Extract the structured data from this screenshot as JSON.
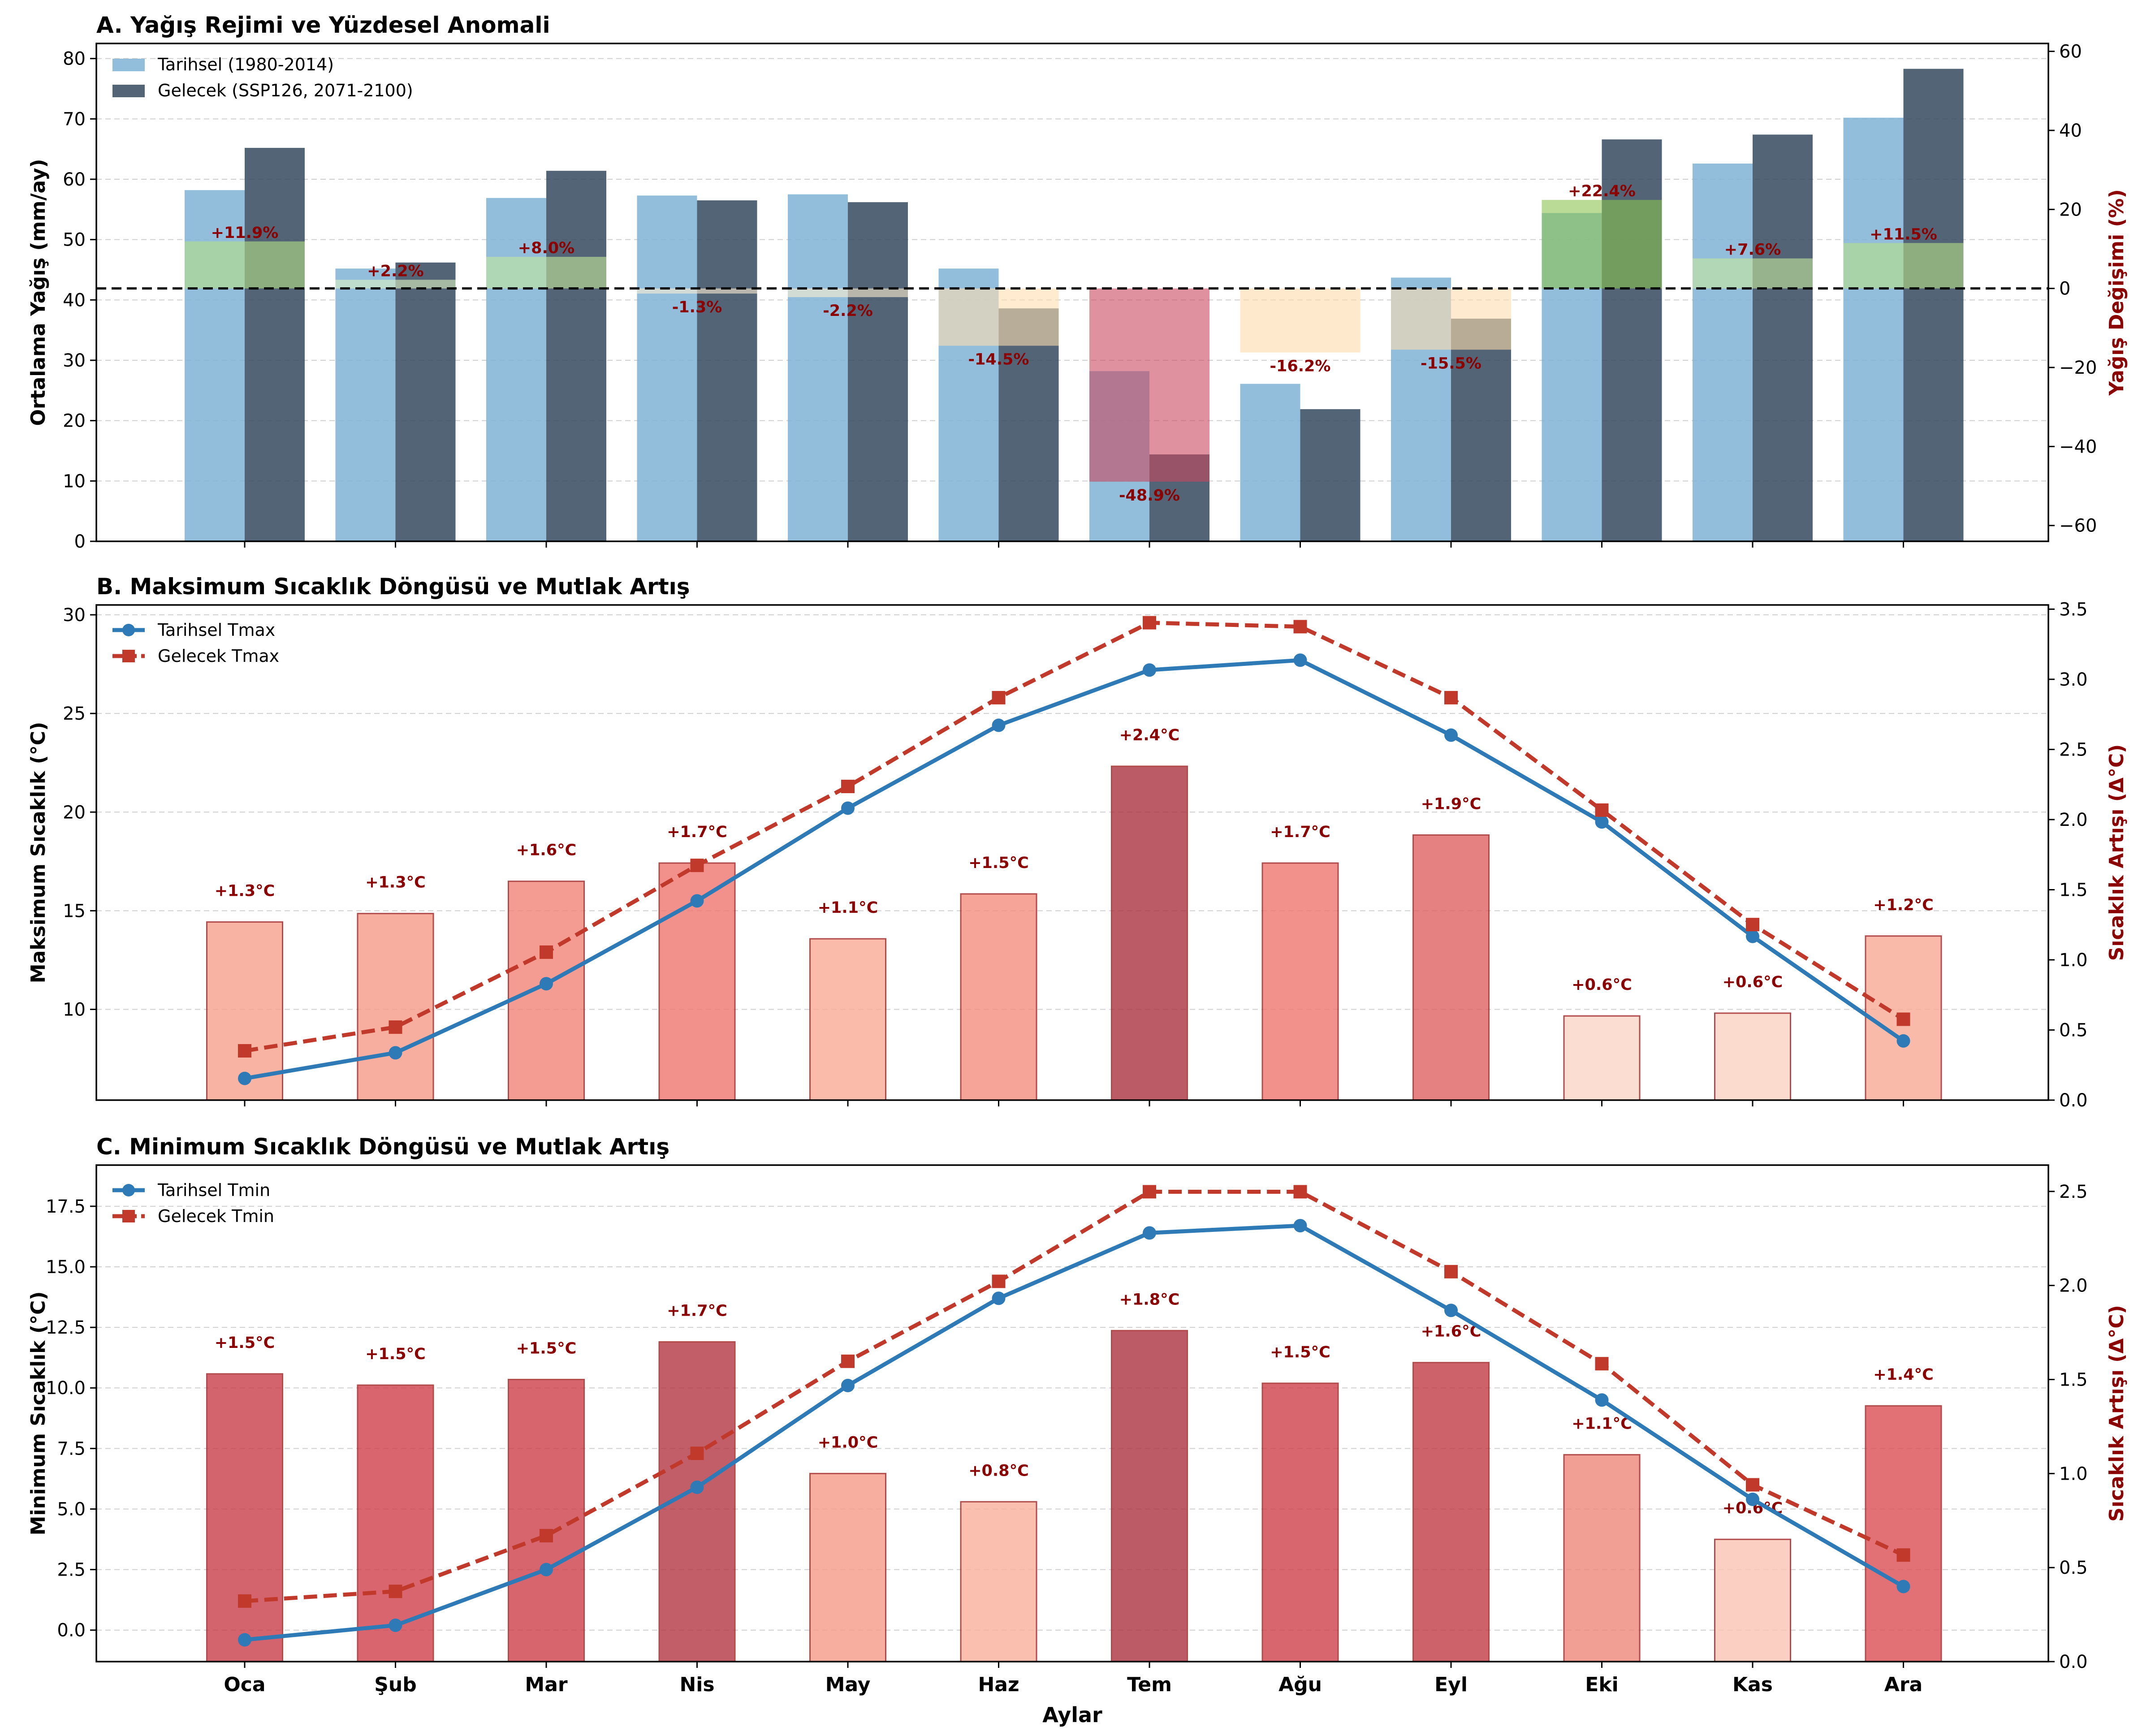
{
  "chart_data": [
    {
      "type": "bar",
      "title": "A. Yağış Rejimi ve Yüzdesel Anomali",
      "categories": [
        "Oca",
        "Şub",
        "Mar",
        "Nis",
        "May",
        "Haz",
        "Tem",
        "Ağu",
        "Eyl",
        "Eki",
        "Kas",
        "Ara"
      ],
      "ylabel": "Ortalama Yağış (mm/ay)",
      "ylabel_right": "Yağış Değişimi (%)",
      "ylim": [
        0,
        82.5
      ],
      "ylim_right": [
        -64,
        62
      ],
      "yticks": [
        0,
        10,
        20,
        30,
        40,
        50,
        60,
        70,
        80
      ],
      "yticks_right": [
        -60,
        -40,
        -20,
        0,
        20,
        40,
        60
      ],
      "series": [
        {
          "name": "Tarihsel (1980-2014)",
          "axis": "left",
          "color": "#7fb3d5",
          "values": [
            58.2,
            45.2,
            56.9,
            57.3,
            57.5,
            45.2,
            28.2,
            26.1,
            43.7,
            54.4,
            62.6,
            70.2
          ]
        },
        {
          "name": "Gelecek (SSP126, 2071-2100)",
          "axis": "left",
          "color": "#34495e",
          "values": [
            65.2,
            46.2,
            61.4,
            56.5,
            56.2,
            38.6,
            14.4,
            21.9,
            36.9,
            66.6,
            67.4,
            78.3
          ]
        },
        {
          "name": "",
          "axis": "right",
          "values": [
            11.9,
            2.2,
            8.0,
            -1.3,
            -2.2,
            -14.5,
            -48.9,
            -16.2,
            -15.5,
            22.4,
            7.6,
            11.5
          ]
        }
      ],
      "data_labels": [
        "+11.9%",
        "+2.2%",
        "+8.0%",
        "-1.3%",
        "-2.2%",
        "-14.5%",
        "-48.9%",
        "-16.2%",
        "-15.5%",
        "+22.4%",
        "+7.6%",
        "+11.5%"
      ],
      "reference_line": {
        "axis": "right",
        "value": 0,
        "style": "dashed",
        "color": "#000000"
      },
      "legend": "upper-left",
      "grid": "y-dashed",
      "colors": {
        "anomaly_positive_high": "#a6d96a",
        "anomaly_negative_low": "#fee0b6",
        "anomaly_negative_high": "#c7425d"
      }
    },
    {
      "type": "bar",
      "title": "B. Maksimum Sıcaklık Döngüsü ve Mutlak Artış",
      "categories": [
        "Oca",
        "Şub",
        "Mar",
        "Nis",
        "May",
        "Haz",
        "Tem",
        "Ağu",
        "Eyl",
        "Eki",
        "Kas",
        "Ara"
      ],
      "ylabel": "Maksimum Sıcaklık (°C)",
      "ylabel_right": "Sıcaklık Artışı (Δ°C)",
      "ylim": [
        5.4,
        30.5
      ],
      "ylim_right": [
        0,
        3.53
      ],
      "yticks": [
        10,
        15,
        20,
        25,
        30
      ],
      "yticks_right": [
        0.0,
        0.5,
        1.0,
        1.5,
        2.0,
        2.5,
        3.0,
        3.5
      ],
      "series": [
        {
          "name": "",
          "axis": "right",
          "type": "bar",
          "values": [
            1.27,
            1.33,
            1.56,
            1.69,
            1.15,
            1.47,
            2.38,
            1.69,
            1.89,
            0.6,
            0.62,
            1.17
          ]
        },
        {
          "name": "Tarihsel Tmax",
          "axis": "left",
          "type": "line",
          "color": "#2e7ab6",
          "marker": "circle",
          "values": [
            6.5,
            7.8,
            11.3,
            15.5,
            20.2,
            24.4,
            27.2,
            27.7,
            23.9,
            19.5,
            13.7,
            8.4
          ]
        },
        {
          "name": "Gelecek Tmax",
          "axis": "left",
          "type": "line",
          "color": "#c0392b",
          "marker": "square",
          "style": "dashed",
          "values": [
            7.9,
            9.1,
            12.9,
            17.3,
            21.3,
            25.8,
            29.6,
            29.4,
            25.8,
            20.1,
            14.3,
            9.5
          ]
        }
      ],
      "data_labels": [
        "+1.3°C",
        "+1.3°C",
        "+1.6°C",
        "+1.7°C",
        "+1.1°C",
        "+1.5°C",
        "+2.4°C",
        "+1.7°C",
        "+1.9°C",
        "+0.6°C",
        "+0.6°C",
        "+1.2°C"
      ],
      "legend": "upper-left",
      "grid": "y-dashed"
    },
    {
      "type": "bar",
      "title": "C. Minimum Sıcaklık Döngüsü ve Mutlak Artış",
      "categories": [
        "Oca",
        "Şub",
        "Mar",
        "Nis",
        "May",
        "Haz",
        "Tem",
        "Ağu",
        "Eyl",
        "Eki",
        "Kas",
        "Ara"
      ],
      "xlabel": "Aylar",
      "ylabel": "Minimum Sıcaklık (°C)",
      "ylabel_right": "Sıcaklık Artışı (Δ°C)",
      "ylim": [
        -1.3,
        19.2
      ],
      "ylim_right": [
        0,
        2.64
      ],
      "yticks": [
        0.0,
        2.5,
        5.0,
        7.5,
        10.0,
        12.5,
        15.0,
        17.5
      ],
      "yticks_right": [
        0.0,
        0.5,
        1.0,
        1.5,
        2.0,
        2.5
      ],
      "series": [
        {
          "name": "",
          "axis": "right",
          "type": "bar",
          "values": [
            1.53,
            1.47,
            1.5,
            1.7,
            1.0,
            0.85,
            1.76,
            1.48,
            1.59,
            1.1,
            0.65,
            1.36
          ]
        },
        {
          "name": "Tarihsel Tmin",
          "axis": "left",
          "type": "line",
          "color": "#2e7ab6",
          "marker": "circle",
          "values": [
            -0.4,
            0.2,
            2.5,
            5.9,
            10.1,
            13.7,
            16.4,
            16.7,
            13.2,
            9.5,
            5.4,
            1.8
          ]
        },
        {
          "name": "Gelecek Tmin",
          "axis": "left",
          "type": "line",
          "color": "#c0392b",
          "marker": "square",
          "style": "dashed",
          "values": [
            1.2,
            1.6,
            3.9,
            7.3,
            11.1,
            14.4,
            18.1,
            18.1,
            14.8,
            11.0,
            6.0,
            3.1
          ]
        }
      ],
      "data_labels": [
        "+1.5°C",
        "+1.5°C",
        "+1.5°C",
        "+1.7°C",
        "+1.0°C",
        "+0.8°C",
        "+1.8°C",
        "+1.5°C",
        "+1.6°C",
        "+1.1°C",
        "+0.6°C",
        "+1.4°C"
      ],
      "legend": "upper-left",
      "grid": "y-dashed"
    }
  ]
}
